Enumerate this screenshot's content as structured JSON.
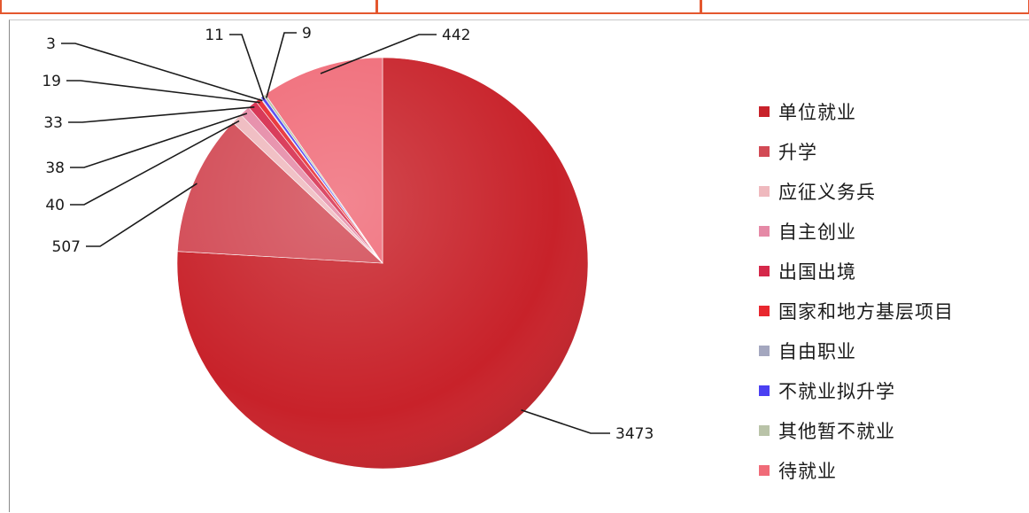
{
  "chart_data": {
    "type": "pie",
    "title": "",
    "legend_position": "right",
    "series": [
      {
        "name": "单位就业",
        "value": 3473,
        "label": "3473",
        "color": "#c8222a"
      },
      {
        "name": "升学",
        "value": 507,
        "label": "507",
        "color": "#d24a55"
      },
      {
        "name": "应征义务兵",
        "value": 40,
        "label": "40",
        "color": "#efb9be"
      },
      {
        "name": "自主创业",
        "value": 38,
        "label": "38",
        "color": "#e589a6"
      },
      {
        "name": "出国出境",
        "value": 33,
        "label": "33",
        "color": "#d5284a"
      },
      {
        "name": "国家和地方基层项目",
        "value": 19,
        "label": "19",
        "color": "#e8272e"
      },
      {
        "name": "自由职业",
        "value": 3,
        "label": "3",
        "color": "#a4a7bf"
      },
      {
        "name": "不就业拟升学",
        "value": 11,
        "label": "11",
        "color": "#4a3ff2"
      },
      {
        "name": "其他暂不就业",
        "value": 9,
        "label": "9",
        "color": "#b9c3a8"
      },
      {
        "name": "待就业",
        "value": 442,
        "label": "442",
        "color": "#f06b78"
      }
    ]
  }
}
